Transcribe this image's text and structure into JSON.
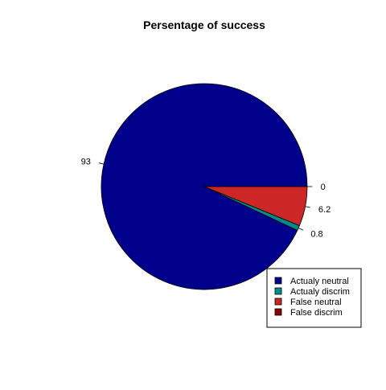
{
  "chart_data": {
    "type": "pie",
    "title": "Persentage of success",
    "categories": [
      "Actualy neutral",
      "Actualy discrim",
      "False neutral",
      "False discrim"
    ],
    "values": [
      93,
      0.8,
      6.2,
      0
    ],
    "labels": [
      "93",
      "0.8",
      "6.2",
      "0"
    ],
    "colors": [
      "#00008B",
      "#008B8B",
      "#CD2626",
      "#8B0000"
    ],
    "legend_position": "bottom-right",
    "direction": "counterclockwise",
    "start_angle_deg": 0
  }
}
